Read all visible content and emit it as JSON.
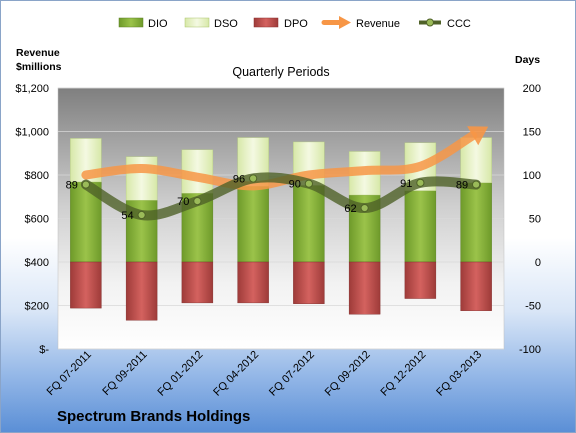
{
  "chart_data": {
    "type": "bar",
    "company": "Spectrum Brands Holdings",
    "subtitle": "Quarterly Periods",
    "left_axis_label_line1": "Revenue",
    "left_axis_label_line2": "$millions",
    "right_axis_label": "Days",
    "categories": [
      "FQ 07-2011",
      "FQ 09-2011",
      "FQ 01-2012",
      "FQ 04-2012",
      "FQ 07-2012",
      "FQ 09-2012",
      "FQ 12-2012",
      "FQ 03-2013"
    ],
    "left_ticks": [
      "$-",
      "$200",
      "$400",
      "$600",
      "$800",
      "$1,000",
      "$1,200"
    ],
    "right_ticks": [
      "-100",
      "-50",
      "0",
      "50",
      "100",
      "150",
      "200"
    ],
    "left_ylim": [
      0,
      1200
    ],
    "right_ylim": [
      -100,
      200
    ],
    "legend_position": "top",
    "series": [
      {
        "name": "DIO",
        "axis": "right",
        "stack": "positive",
        "color": "#8db43c",
        "values": [
          92,
          71,
          79,
          87,
          88,
          77,
          82,
          91
        ]
      },
      {
        "name": "DSO",
        "axis": "right",
        "stack": "positive",
        "color": "#e6f2c4",
        "values": [
          50,
          50,
          50,
          56,
          50,
          50,
          55,
          52
        ]
      },
      {
        "name": "DPO",
        "axis": "right",
        "stack": "negative",
        "color": "#c0504d",
        "values": [
          -53,
          -67,
          -47,
          -47,
          -48,
          -60,
          -42,
          -56
        ]
      },
      {
        "name": "Revenue",
        "axis": "left",
        "type": "line",
        "color": "#f79646",
        "values": [
          800,
          830,
          790,
          750,
          800,
          820,
          840,
          990
        ]
      },
      {
        "name": "CCC",
        "axis": "right",
        "type": "line",
        "color": "#4f6228",
        "values": [
          89,
          54,
          70,
          96,
          90,
          62,
          91,
          89
        ]
      }
    ],
    "ccc_labels": [
      "89",
      "54",
      "70",
      "96",
      "90",
      "62",
      "91",
      "89"
    ]
  }
}
